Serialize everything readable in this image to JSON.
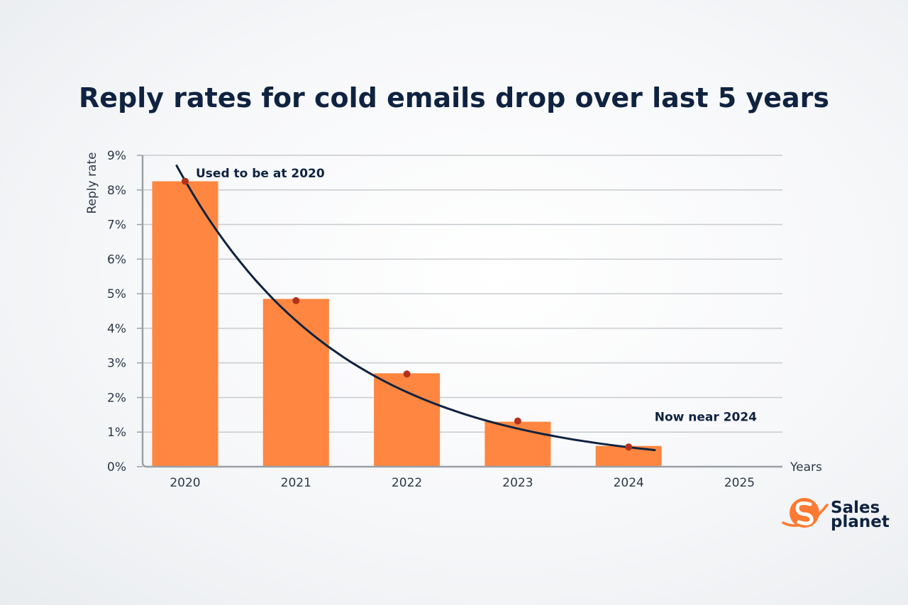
{
  "colors": {
    "bar": "#fe8640",
    "trend_line": "#0f2340",
    "marker": "#b3321c",
    "grid": "#c8cbcf",
    "axis": "#9aa0a6",
    "text_dark": "#0f2340",
    "logo_orange": "#fe7a32"
  },
  "chart_data": {
    "type": "bar",
    "title": "Reply rates for cold emails drop over last 5 years",
    "ylabel": "Reply rate",
    "xlabel": "Years",
    "categories": [
      "2020",
      "2021",
      "2022",
      "2023",
      "2024",
      "2025"
    ],
    "values": [
      8.25,
      4.85,
      2.7,
      1.3,
      0.6,
      null
    ],
    "ylim": [
      0,
      9
    ],
    "yticks": [
      0,
      1,
      2,
      3,
      4,
      5,
      6,
      7,
      8,
      9
    ],
    "ytick_suffix": "%",
    "grid": true,
    "trend": {
      "type": "line",
      "start_value": 8.7,
      "end_value": 0.48,
      "markers": [
        8.25,
        4.8,
        2.68,
        1.32,
        0.57
      ]
    },
    "annotations": [
      {
        "text": "Used to be at 2020",
        "category": "2020",
        "value": 8.25
      },
      {
        "text": "Now near 2024",
        "category": "2024",
        "value": 1.4
      }
    ]
  },
  "logo": {
    "line1": "Sales",
    "line2": "planet",
    "icon": "sales-planet-logo-icon"
  }
}
